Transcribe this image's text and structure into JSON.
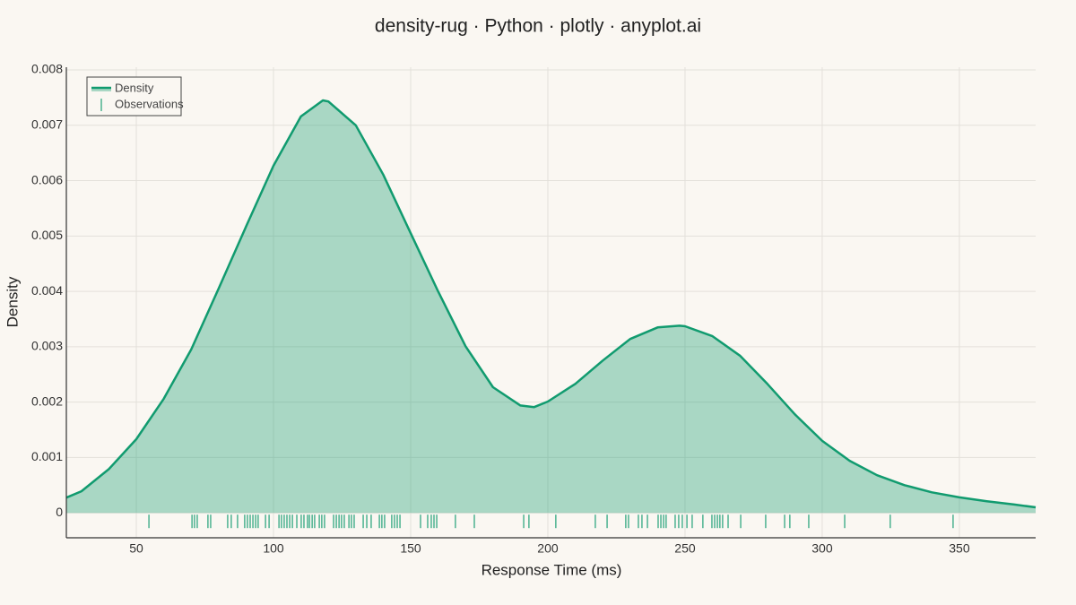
{
  "chart_data": {
    "type": "density-rug",
    "title": "density-rug · Python · plotly · anyplot.ai",
    "x_label": "Response Time (ms)",
    "y_label": "Density",
    "xlim": [
      24.5,
      377.8
    ],
    "ylim": [
      -0.00045,
      0.008
    ],
    "xticks": [
      50,
      100,
      150,
      200,
      250,
      300,
      350
    ],
    "yticks": [
      0,
      0.001,
      0.002,
      0.003,
      0.004,
      0.005,
      0.006,
      0.007,
      0.008
    ],
    "grid": true,
    "legend": "top-left",
    "series": [
      {
        "name": "Density",
        "color": "#119b6f",
        "x": [
          24.5,
          30,
          40,
          50,
          60,
          70,
          80,
          90,
          100,
          110,
          118,
          120,
          130,
          140,
          150,
          160,
          170,
          180,
          190,
          195,
          200,
          210,
          220,
          230,
          240,
          248,
          250,
          260,
          270,
          280,
          290,
          300,
          310,
          320,
          330,
          340,
          350,
          360,
          370,
          377.8
        ],
        "values": [
          0.000275,
          0.00039,
          0.00079,
          0.00133,
          0.00206,
          0.00295,
          0.00405,
          0.00517,
          0.00627,
          0.00716,
          0.00745,
          0.00743,
          0.007,
          0.00611,
          0.00505,
          0.004,
          0.00301,
          0.00227,
          0.00194,
          0.00191,
          0.00201,
          0.00233,
          0.00275,
          0.00314,
          0.00335,
          0.00338,
          0.00337,
          0.00319,
          0.00284,
          0.00233,
          0.00178,
          0.0013,
          0.00094,
          0.00068,
          0.0005,
          0.00037,
          0.00028,
          0.00021,
          0.00015,
          0.0001
        ]
      },
      {
        "name": "Observations",
        "color": "#119b6f",
        "x": [
          54.6,
          70.3,
          71.2,
          72.2,
          76.1,
          77.1,
          83.3,
          84.6,
          86.9,
          89.5,
          90.5,
          91.5,
          92.5,
          93.5,
          94.4,
          97.1,
          98.4,
          102.0,
          102.9,
          103.9,
          104.9,
          105.9,
          106.9,
          108.5,
          110.1,
          111.1,
          112.4,
          113.1,
          114.1,
          115.0,
          116.7,
          117.6,
          118.6,
          121.9,
          122.9,
          123.9,
          124.8,
          125.8,
          127.5,
          128.4,
          129.4,
          132.7,
          134.0,
          135.6,
          138.6,
          139.5,
          140.5,
          143.1,
          144.1,
          145.1,
          146.1,
          153.6,
          156.2,
          157.5,
          158.5,
          159.5,
          166.3,
          173.2,
          191.2,
          193.1,
          202.9,
          217.3,
          221.6,
          228.4,
          229.4,
          233.0,
          234.3,
          236.3,
          240.2,
          241.2,
          242.2,
          243.1,
          246.4,
          247.7,
          249.0,
          250.7,
          252.6,
          256.5,
          259.8,
          260.8,
          261.8,
          262.7,
          263.7,
          265.7,
          270.3,
          279.4,
          286.3,
          288.2,
          295.1,
          308.2,
          324.8,
          347.7
        ]
      }
    ]
  }
}
